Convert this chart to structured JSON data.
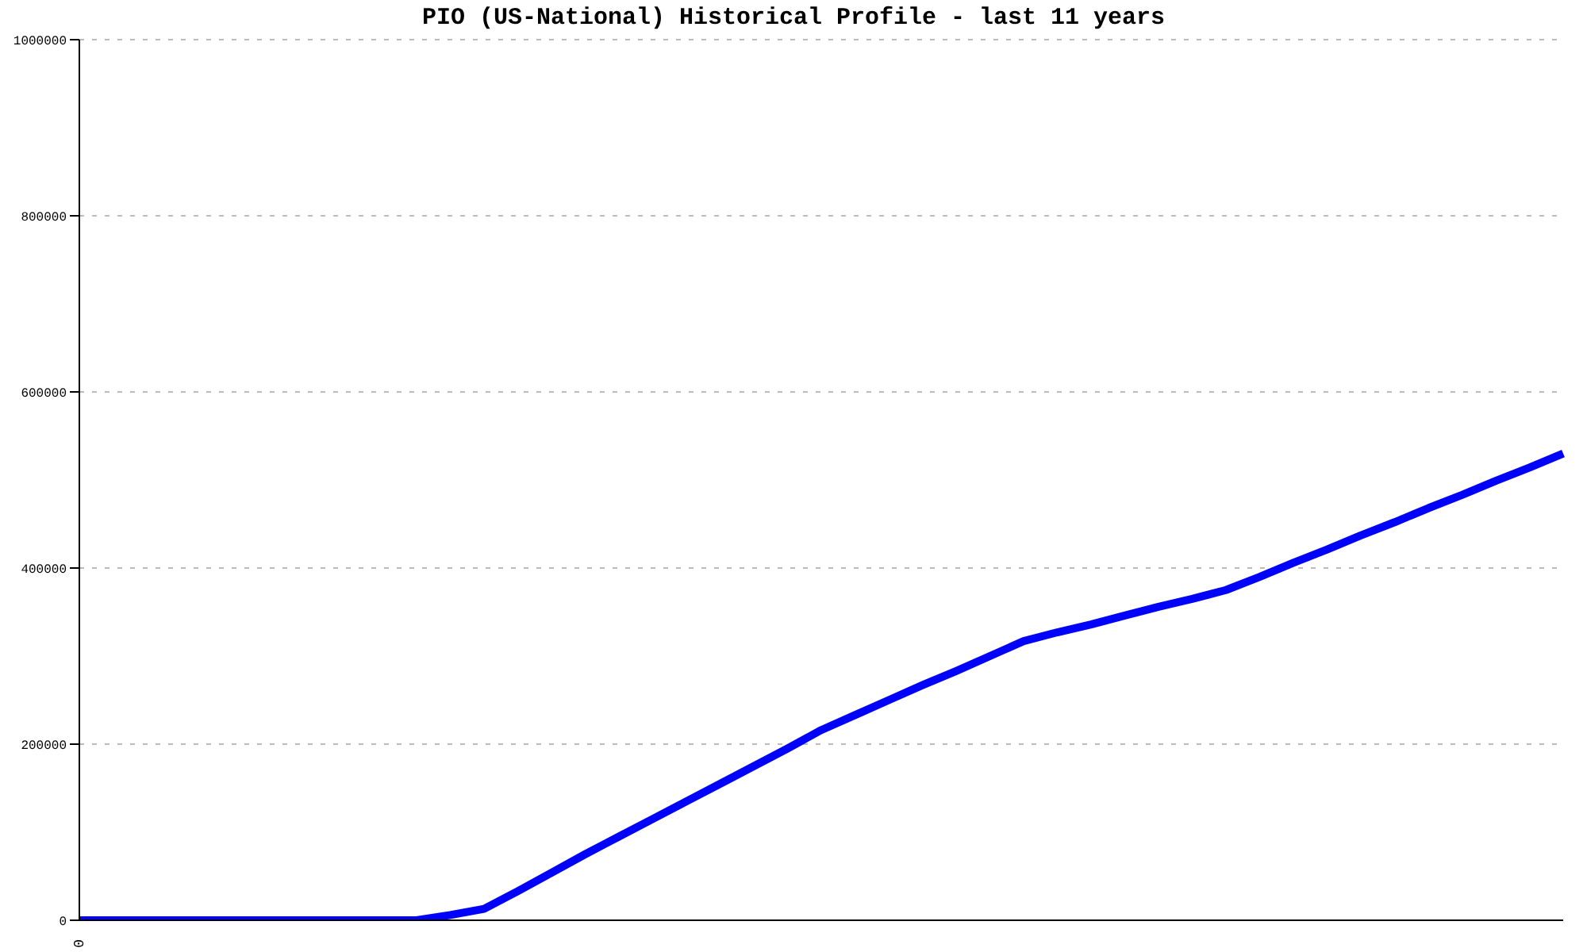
{
  "chart_data": {
    "type": "line",
    "title": "PIO (US-National) Historical Profile - last 11 years",
    "categories": [
      "0",
      null,
      null,
      null,
      null,
      null,
      null,
      null,
      null,
      null,
      null,
      null,
      null,
      null,
      null,
      null,
      null,
      null,
      null,
      null,
      null,
      null,
      null,
      null,
      null,
      null,
      null,
      null,
      null,
      null,
      null,
      null,
      null,
      null,
      null,
      null,
      null,
      null,
      null,
      null,
      null,
      null,
      null,
      null,
      null
    ],
    "series": [
      {
        "color": "#0000ff",
        "values": [
          0,
          0,
          0,
          0,
          0,
          0,
          0,
          0,
          0,
          0,
          0,
          6000,
          13000,
          33000,
          54000,
          75000,
          95000,
          115000,
          135000,
          155000,
          175000,
          195000,
          216000,
          233000,
          250000,
          267000,
          283000,
          300000,
          317000,
          327000,
          336000,
          346000,
          356000,
          365000,
          375000,
          390000,
          406000,
          421000,
          437000,
          452000,
          468000,
          483000,
          499000,
          514000,
          530000
        ]
      }
    ],
    "ylim": [
      0,
      1000000
    ],
    "yticks": [
      0,
      200000,
      400000,
      600000,
      800000,
      1000000
    ],
    "grid": "y",
    "legend": false,
    "marker": "none",
    "line_style": "solid"
  }
}
